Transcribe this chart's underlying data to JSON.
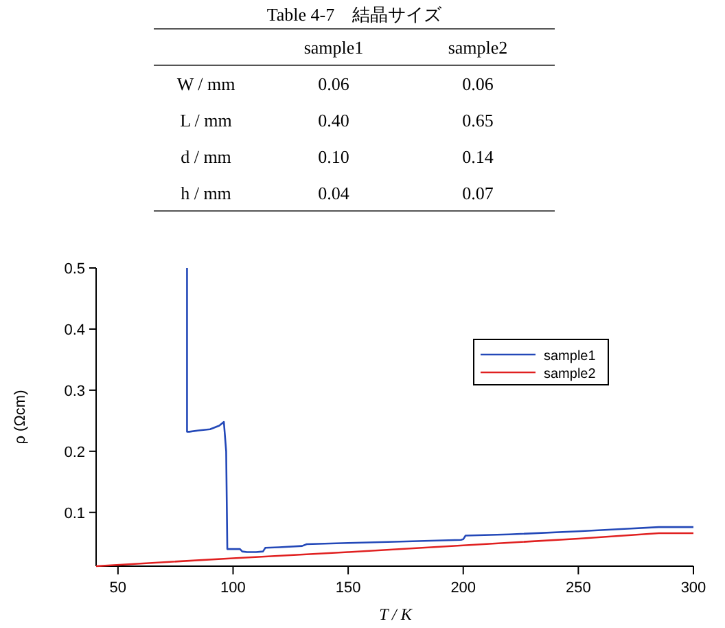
{
  "chart_data": [
    {
      "type": "other",
      "title": "Table 4-7　結晶サイズ",
      "categories": [
        "sample1",
        "sample2"
      ],
      "y_categories": [
        "W / mm",
        "L / mm",
        "d / mm",
        "h / mm"
      ],
      "cells": [
        [
          "0.06",
          "0.06"
        ],
        [
          "0.40",
          "0.65"
        ],
        [
          "0.10",
          "0.14"
        ],
        [
          "0.04",
          "0.07"
        ]
      ]
    },
    {
      "type": "line",
      "xlabel": "T / K",
      "ylabel": "ρ (Ωcm)",
      "xlim": [
        40.5,
        300
      ],
      "ylim": [
        0.012,
        0.5
      ],
      "xticks": [
        50,
        100,
        150,
        200,
        250,
        300
      ],
      "yticks": [
        0.1,
        0.2,
        0.3,
        0.4,
        0.5
      ],
      "legend": "right",
      "line_style": "solid",
      "marker": "none",
      "series": [
        {
          "name": "sample1",
          "color": "#2348b8",
          "x": [
            80,
            80,
            81,
            85,
            90,
            94,
            96,
            97,
            97.5,
            100,
            103,
            104,
            106,
            110,
            113,
            114,
            120,
            130,
            132,
            150,
            170,
            199,
            200,
            201,
            220,
            250,
            270,
            285,
            300
          ],
          "values": [
            0.5,
            0.232,
            0.232,
            0.234,
            0.236,
            0.242,
            0.248,
            0.2,
            0.04,
            0.04,
            0.04,
            0.036,
            0.035,
            0.035,
            0.036,
            0.042,
            0.043,
            0.045,
            0.048,
            0.05,
            0.052,
            0.055,
            0.056,
            0.062,
            0.064,
            0.069,
            0.073,
            0.076,
            0.076
          ]
        },
        {
          "name": "sample2",
          "color": "#e02020",
          "x": [
            40.5,
            100,
            150,
            200,
            250,
            285,
            300
          ],
          "values": [
            0.012,
            0.025,
            0.035,
            0.046,
            0.057,
            0.066,
            0.066
          ]
        }
      ]
    }
  ]
}
